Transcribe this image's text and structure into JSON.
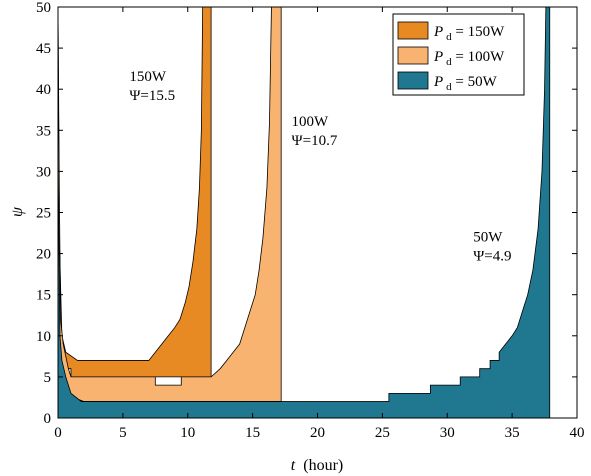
{
  "chart_data": {
    "type": "area",
    "xlabel_var": "t",
    "xlabel_unit": "(hour)",
    "ylabel": "ψ",
    "xlim": [
      0,
      40
    ],
    "ylim": [
      0,
      50
    ],
    "xticks": [
      0,
      5,
      10,
      15,
      20,
      25,
      30,
      35,
      40
    ],
    "yticks": [
      0,
      5,
      10,
      15,
      20,
      25,
      30,
      35,
      40,
      45,
      50
    ],
    "grid": false,
    "legend_position": "top-right",
    "series": [
      {
        "key": "p150",
        "legend_var": "P",
        "legend_sub": "d",
        "legend_value": " = 150W",
        "color": "#E88A24",
        "lower": [
          [
            0,
            0
          ],
          [
            0.2,
            6
          ],
          [
            1,
            6
          ],
          [
            1,
            5
          ],
          [
            11.8,
            5
          ],
          [
            11.8,
            0
          ]
        ],
        "upper": [
          [
            0,
            50
          ],
          [
            0.1,
            22
          ],
          [
            0.3,
            10
          ],
          [
            0.6,
            8
          ],
          [
            1.5,
            7
          ],
          [
            7.0,
            7
          ],
          [
            7.5,
            8
          ],
          [
            8.0,
            9
          ],
          [
            8.5,
            10
          ],
          [
            9.0,
            11
          ],
          [
            9.4,
            12
          ],
          [
            9.8,
            14
          ],
          [
            10.1,
            16
          ],
          [
            10.4,
            19
          ],
          [
            10.7,
            23
          ],
          [
            10.9,
            28
          ],
          [
            11.05,
            35
          ],
          [
            11.15,
            50
          ],
          [
            11.8,
            50
          ]
        ]
      },
      {
        "key": "p100",
        "legend_var": "P",
        "legend_sub": "d",
        "legend_value": " = 100W",
        "color": "#F8B370",
        "lower": [
          [
            0,
            0
          ],
          [
            0.3,
            3
          ],
          [
            2,
            2
          ],
          [
            12,
            2
          ],
          [
            17.2,
            2
          ],
          [
            17.2,
            0
          ]
        ],
        "upper": [
          [
            0,
            50
          ],
          [
            0.1,
            28
          ],
          [
            0.2,
            12
          ],
          [
            0.4,
            9
          ],
          [
            0.8,
            6
          ],
          [
            1,
            5
          ],
          [
            7.5,
            5
          ],
          [
            7.5,
            4
          ],
          [
            9.5,
            4
          ],
          [
            9.5,
            5
          ],
          [
            11.8,
            5
          ],
          [
            12.5,
            6
          ],
          [
            13,
            7
          ],
          [
            13.5,
            8
          ],
          [
            14,
            9
          ],
          [
            14.4,
            11
          ],
          [
            14.8,
            13
          ],
          [
            15.2,
            15
          ],
          [
            15.5,
            18
          ],
          [
            15.8,
            22
          ],
          [
            16.1,
            28
          ],
          [
            16.3,
            36
          ],
          [
            16.45,
            50
          ],
          [
            17.2,
            50
          ]
        ]
      },
      {
        "key": "p50",
        "legend_var": "P",
        "legend_sub": "d",
        "legend_value": " = 50W",
        "color": "#1F7790",
        "lower": [
          [
            0,
            0
          ],
          [
            37.9,
            0
          ]
        ],
        "upper": [
          [
            0,
            33
          ],
          [
            0.15,
            10
          ],
          [
            0.3,
            7
          ],
          [
            0.6,
            5
          ],
          [
            1,
            3
          ],
          [
            1.8,
            2
          ],
          [
            25.5,
            2
          ],
          [
            25.5,
            3
          ],
          [
            28.7,
            3
          ],
          [
            28.7,
            4
          ],
          [
            31,
            4
          ],
          [
            31,
            5
          ],
          [
            32.5,
            5
          ],
          [
            32.5,
            6
          ],
          [
            33.3,
            6
          ],
          [
            33.3,
            7
          ],
          [
            34,
            7
          ],
          [
            34,
            8
          ],
          [
            34.5,
            9
          ],
          [
            35,
            10
          ],
          [
            35.4,
            11
          ],
          [
            35.8,
            13
          ],
          [
            36.2,
            15
          ],
          [
            36.6,
            18
          ],
          [
            37,
            23
          ],
          [
            37.3,
            30
          ],
          [
            37.5,
            40
          ],
          [
            37.6,
            50
          ],
          [
            37.9,
            50
          ]
        ]
      }
    ],
    "annotations": [
      {
        "line1": "150W",
        "line2": "Ψ=15.5",
        "x": 5.5,
        "y": 41
      },
      {
        "line1": "100W",
        "line2": "Ψ=10.7",
        "x": 18,
        "y": 35.5
      },
      {
        "line1": "50W",
        "line2": "Ψ=4.9",
        "x": 32,
        "y": 21.5
      }
    ]
  }
}
